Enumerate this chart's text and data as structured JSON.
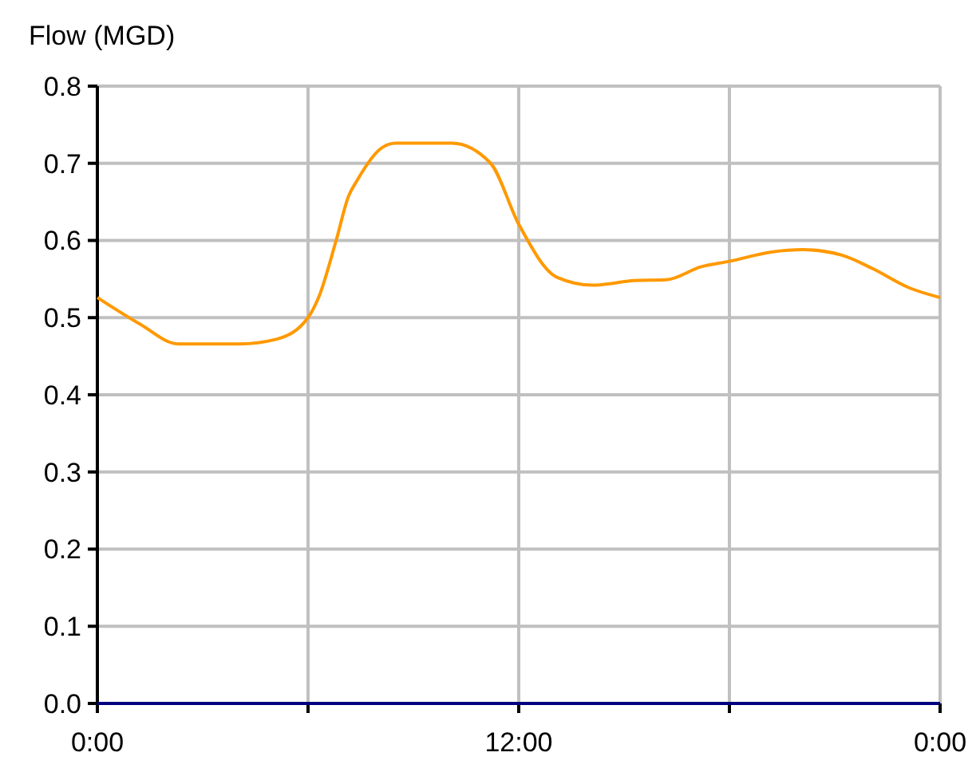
{
  "chart_data": {
    "type": "line",
    "ylabel": "Flow (MGD)",
    "xlim": [
      0,
      24
    ],
    "xticks": [
      {
        "value": 0,
        "label": "0:00"
      },
      {
        "value": 6,
        "label": null
      },
      {
        "value": 12,
        "label": "12:00"
      },
      {
        "value": 18,
        "label": null
      },
      {
        "value": 24,
        "label": "0:00"
      }
    ],
    "ylim": [
      0,
      0.8
    ],
    "yticks": [
      {
        "value": 0,
        "label": "0.0"
      },
      {
        "value": 0.1,
        "label": "0.1"
      },
      {
        "value": 0.2,
        "label": "0.2"
      },
      {
        "value": 0.3,
        "label": "0.3"
      },
      {
        "value": 0.4,
        "label": "0.4"
      },
      {
        "value": 0.5,
        "label": "0.5"
      },
      {
        "value": 0.6,
        "label": "0.6"
      },
      {
        "value": 0.7,
        "label": "0.7"
      },
      {
        "value": 0.8,
        "label": "0.8"
      }
    ],
    "grid": true,
    "marker": "none",
    "line_style": "solid",
    "series": [
      {
        "color": "#ff9900",
        "x": [
          0,
          1.2,
          2.3,
          4.05,
          5.1,
          6,
          6.3,
          6.8,
          7.15,
          7.4,
          8.1,
          8.5,
          10.1,
          11.2,
          12,
          13.1,
          14.1,
          15.3,
          16.2,
          17.2,
          18,
          19.2,
          20.1,
          21.2,
          22.1,
          23.1,
          24
        ],
        "values": [
          0.526,
          0.492,
          0.466,
          0.466,
          0.472,
          0.5,
          0.526,
          0.6,
          0.657,
          0.678,
          0.72,
          0.726,
          0.726,
          0.7,
          0.621,
          0.552,
          0.542,
          0.548,
          0.549,
          0.566,
          0.573,
          0.585,
          0.588,
          0.581,
          0.563,
          0.539,
          0.526
        ]
      },
      {
        "color": "#000080",
        "x": [
          0,
          24
        ],
        "values": [
          0,
          0
        ]
      }
    ]
  }
}
